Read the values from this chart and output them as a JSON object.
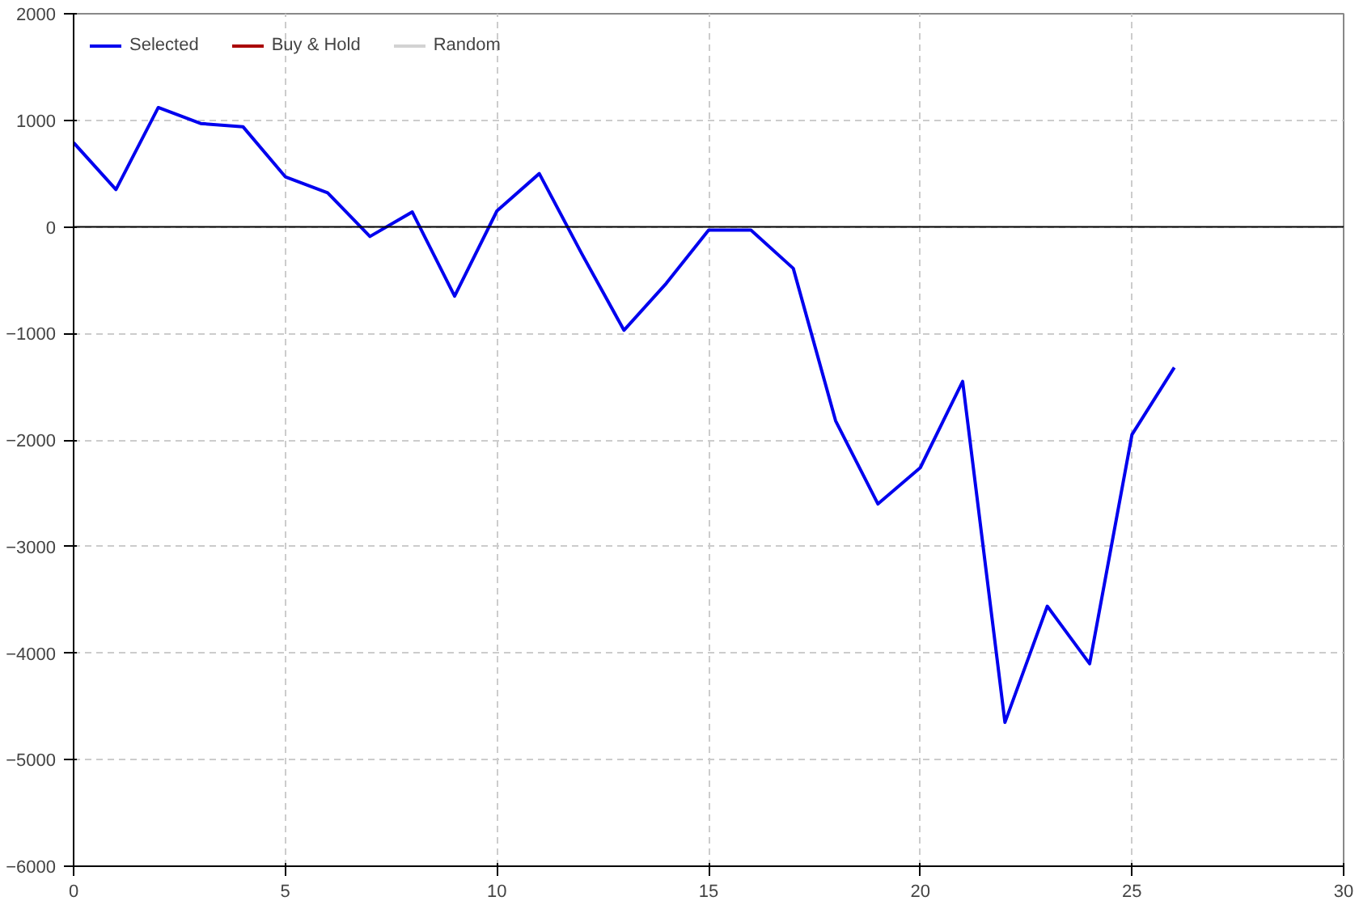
{
  "chart_data": {
    "type": "line",
    "x": [
      0,
      1,
      2,
      3,
      4,
      5,
      6,
      7,
      8,
      9,
      10,
      11,
      12,
      13,
      14,
      15,
      16,
      17,
      18,
      19,
      20,
      21,
      22,
      23,
      24,
      25,
      26
    ],
    "series": [
      {
        "name": "Selected",
        "color": "#0000ee",
        "values": [
          790,
          350,
          1120,
          970,
          940,
          470,
          320,
          -90,
          140,
          -650,
          150,
          500,
          -250,
          -970,
          -530,
          -30,
          -30,
          -390,
          -1820,
          -2600,
          -2260,
          -1450,
          -4650,
          -3560,
          -4100,
          -1950,
          -1320
        ]
      },
      {
        "name": "Buy & Hold",
        "color": "#aa0000",
        "values": [
          null,
          null,
          null,
          null,
          null,
          null,
          null,
          null,
          null,
          null,
          null,
          null,
          null,
          null,
          null,
          null,
          null,
          null,
          null,
          null,
          null,
          null,
          null,
          null,
          null,
          null,
          null
        ]
      },
      {
        "name": "Random",
        "color": "#d3d3d3",
        "values": [
          null,
          null,
          null,
          null,
          null,
          null,
          null,
          null,
          null,
          null,
          null,
          null,
          null,
          null,
          null,
          null,
          null,
          null,
          null,
          null,
          null,
          null,
          null,
          null,
          null,
          null,
          null
        ]
      }
    ],
    "xlim": [
      0,
      30
    ],
    "xticks": [
      0,
      5,
      10,
      15,
      20,
      25,
      30
    ],
    "ylim": [
      -6000,
      2000
    ],
    "yticks": [
      -6000,
      -5000,
      -4000,
      -3000,
      -2000,
      -1000,
      0,
      1000,
      2000
    ],
    "ref_lines": [
      {
        "axis": "y",
        "value": 0,
        "color": "#000000"
      }
    ],
    "grid": true,
    "legend": "top left",
    "marker": "none",
    "line_style": "solid"
  }
}
